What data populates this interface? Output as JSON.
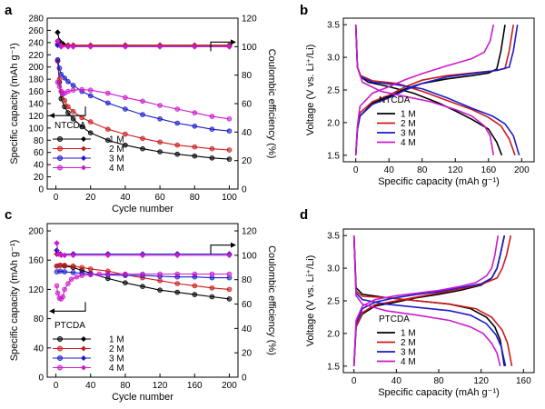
{
  "chart_data": [
    {
      "panel": "a",
      "type": "line",
      "xlabel": "Cycle number",
      "ylabel": "Specific capacity (mAh g⁻¹)",
      "y2label": "Coulombic efficiency (%)",
      "xlim": [
        -5,
        105
      ],
      "ylim": [
        0,
        280
      ],
      "y2lim": [
        0,
        120
      ],
      "xticks": [
        0,
        20,
        40,
        60,
        80,
        100
      ],
      "yticks": [
        0,
        20,
        40,
        60,
        80,
        100,
        120,
        140,
        160,
        180,
        200,
        220,
        240,
        260,
        280
      ],
      "y2ticks": [
        0,
        20,
        40,
        60,
        80,
        100,
        120
      ],
      "material": "NTCDA",
      "legend_position": "bottom-left",
      "series": [
        {
          "name": "1 M",
          "color": "#000000",
          "marker": "circle",
          "x": [
            1,
            2,
            3,
            5,
            7,
            10,
            15,
            20,
            30,
            40,
            50,
            60,
            70,
            80,
            90,
            100
          ],
          "capacity": [
            210,
            175,
            148,
            135,
            125,
            115,
            102,
            92,
            80,
            72,
            66,
            61,
            57,
            54,
            51,
            49
          ],
          "ce_x": [
            1,
            2,
            4,
            7,
            10,
            20,
            40,
            60,
            80,
            100
          ],
          "ce": [
            110,
            104,
            102,
            101,
            101,
            101,
            101,
            101,
            101,
            101
          ]
        },
        {
          "name": "2 M",
          "color": "#cc1a1a",
          "marker": "circle",
          "x": [
            1,
            2,
            3,
            5,
            7,
            10,
            15,
            20,
            30,
            40,
            50,
            60,
            70,
            80,
            90,
            100
          ],
          "capacity": [
            210,
            180,
            160,
            145,
            135,
            127,
            117,
            110,
            98,
            90,
            83,
            77,
            72,
            69,
            66,
            64
          ],
          "ce_x": [
            1,
            3,
            7,
            10,
            20,
            40,
            60,
            80,
            100
          ],
          "ce": [
            102,
            101,
            101,
            101,
            101,
            101,
            101,
            101,
            101
          ]
        },
        {
          "name": "3 M",
          "color": "#1a1acc",
          "marker": "circle",
          "x": [
            1,
            2,
            3,
            5,
            7,
            10,
            15,
            20,
            30,
            40,
            50,
            60,
            70,
            80,
            90,
            100
          ],
          "capacity": [
            212,
            198,
            188,
            182,
            176,
            170,
            160,
            153,
            141,
            131,
            122,
            115,
            108,
            103,
            98,
            95
          ],
          "ce_x": [
            1,
            3,
            7,
            10,
            20,
            40,
            60,
            80,
            100
          ],
          "ce": [
            101,
            100,
            100,
            100,
            100,
            100,
            100,
            100,
            100
          ]
        },
        {
          "name": "4 M",
          "color": "#cc1acc",
          "marker": "circle",
          "x": [
            1,
            2,
            3,
            4,
            5,
            7,
            10,
            15,
            20,
            30,
            40,
            50,
            60,
            70,
            80,
            90,
            100
          ],
          "capacity": [
            175,
            168,
            160,
            156,
            157,
            160,
            162,
            163,
            162,
            157,
            150,
            144,
            137,
            131,
            125,
            119,
            115
          ],
          "ce_x": [
            1,
            3,
            7,
            10,
            20,
            40,
            60,
            80,
            100
          ],
          "ce": [
            104,
            100,
            100,
            100,
            100,
            100,
            100,
            100,
            100
          ]
        }
      ],
      "annotations": [
        "arrow-left-capacity",
        "arrow-right-efficiency"
      ]
    },
    {
      "panel": "b",
      "type": "line",
      "xlabel": "Specific capacity (mAh g⁻¹)",
      "ylabel": "Voltage (V vs. Li⁺/Li)",
      "xlim": [
        -15,
        215
      ],
      "ylim": [
        1.4,
        3.6
      ],
      "xticks": [
        0,
        40,
        80,
        120,
        160,
        200
      ],
      "yticks": [
        1.5,
        2.0,
        2.5,
        3.0,
        3.5
      ],
      "material": "NTCDA",
      "legend_position": "bottom-left",
      "series": [
        {
          "name": "1 M",
          "color": "#000000",
          "discharge_x": [
            0,
            2,
            6,
            15,
            40,
            70,
            100,
            120,
            140,
            160,
            170,
            176
          ],
          "discharge_y": [
            3.5,
            2.85,
            2.7,
            2.62,
            2.55,
            2.45,
            2.3,
            2.18,
            2.05,
            1.9,
            1.7,
            1.5
          ],
          "charge_x": [
            0,
            2,
            5,
            20,
            40,
            60,
            80,
            110,
            140,
            160,
            170,
            175,
            180
          ],
          "charge_y": [
            1.5,
            1.9,
            2.1,
            2.3,
            2.4,
            2.52,
            2.6,
            2.67,
            2.72,
            2.76,
            2.82,
            3.1,
            3.5
          ]
        },
        {
          "name": "2 M",
          "color": "#cc1a1a",
          "discharge_x": [
            0,
            2,
            6,
            20,
            50,
            80,
            110,
            140,
            160,
            175,
            185,
            192
          ],
          "discharge_y": [
            3.5,
            2.85,
            2.72,
            2.64,
            2.6,
            2.48,
            2.34,
            2.2,
            2.08,
            1.95,
            1.75,
            1.5
          ],
          "charge_x": [
            0,
            2,
            5,
            20,
            40,
            60,
            80,
            110,
            140,
            170,
            180,
            185,
            190
          ],
          "charge_y": [
            1.5,
            1.9,
            2.15,
            2.32,
            2.42,
            2.55,
            2.65,
            2.72,
            2.76,
            2.8,
            2.83,
            3.1,
            3.5
          ]
        },
        {
          "name": "3 M",
          "color": "#1a1acc",
          "discharge_x": [
            0,
            2,
            6,
            20,
            50,
            80,
            110,
            140,
            165,
            180,
            190,
            197
          ],
          "discharge_y": [
            3.5,
            2.85,
            2.7,
            2.62,
            2.58,
            2.52,
            2.38,
            2.22,
            2.1,
            1.98,
            1.8,
            1.5
          ],
          "charge_x": [
            0,
            2,
            5,
            20,
            40,
            60,
            80,
            110,
            140,
            170,
            185,
            190,
            195
          ],
          "charge_y": [
            1.5,
            1.9,
            2.1,
            2.28,
            2.38,
            2.5,
            2.6,
            2.7,
            2.75,
            2.8,
            2.85,
            3.1,
            3.5
          ]
        },
        {
          "name": "4 M",
          "color": "#cc1acc",
          "discharge_x": [
            0,
            2,
            8,
            30,
            60,
            90,
            120,
            140,
            155,
            162,
            166
          ],
          "discharge_y": [
            3.5,
            2.85,
            2.62,
            2.48,
            2.4,
            2.32,
            2.2,
            2.1,
            1.95,
            1.8,
            1.5
          ],
          "charge_x": [
            0,
            2,
            5,
            20,
            40,
            60,
            80,
            110,
            140,
            155,
            162,
            166
          ],
          "charge_y": [
            1.5,
            1.95,
            2.25,
            2.45,
            2.55,
            2.66,
            2.75,
            2.87,
            2.98,
            3.08,
            3.25,
            3.5
          ]
        }
      ]
    },
    {
      "panel": "c",
      "type": "line",
      "xlabel": "Cycle number",
      "ylabel": "Specific capacity (mAh g⁻¹)",
      "y2label": "Coulombic efficiency (%)",
      "xlim": [
        -10,
        210
      ],
      "ylim": [
        0,
        210
      ],
      "y2lim": [
        0,
        126
      ],
      "xticks": [
        0,
        40,
        80,
        120,
        160,
        200
      ],
      "yticks": [
        0,
        40,
        80,
        120,
        160,
        200
      ],
      "y2ticks": [
        0,
        20,
        40,
        60,
        80,
        100,
        120
      ],
      "material": "PTCDA",
      "legend_position": "bottom-left",
      "series": [
        {
          "name": "1 M",
          "color": "#000000",
          "marker": "circle",
          "x": [
            1,
            5,
            10,
            20,
            30,
            40,
            60,
            80,
            100,
            120,
            140,
            160,
            180,
            200
          ],
          "capacity": [
            152,
            153,
            152,
            150,
            146,
            142,
            135,
            129,
            124,
            119,
            116,
            113,
            110,
            107
          ],
          "ce_x": [
            1,
            5,
            20,
            60,
            100,
            140,
            200
          ],
          "ce": [
            101,
            101,
            101,
            101,
            101,
            101,
            101
          ]
        },
        {
          "name": "2 M",
          "color": "#cc1a1a",
          "marker": "circle",
          "x": [
            1,
            5,
            10,
            20,
            30,
            40,
            60,
            80,
            100,
            120,
            140,
            160,
            180,
            200
          ],
          "capacity": [
            152,
            153,
            153,
            152,
            150,
            148,
            145,
            140,
            136,
            132,
            128,
            125,
            122,
            120
          ],
          "ce_x": [
            1,
            5,
            20,
            60,
            100,
            140,
            200
          ],
          "ce": [
            101,
            101,
            101,
            101,
            101,
            101,
            101
          ]
        },
        {
          "name": "3 M",
          "color": "#1a1acc",
          "marker": "circle",
          "x": [
            1,
            5,
            10,
            20,
            30,
            40,
            60,
            80,
            100,
            120,
            140,
            160,
            180,
            200
          ],
          "capacity": [
            144,
            145,
            144,
            143,
            142,
            141,
            140,
            139,
            139,
            138,
            137,
            137,
            136,
            136
          ],
          "ce_x": [
            1,
            5,
            20,
            60,
            100,
            140,
            200
          ],
          "ce": [
            104,
            101,
            101,
            101,
            101,
            101,
            101
          ]
        },
        {
          "name": "4 M",
          "color": "#cc1acc",
          "marker": "circle",
          "x": [
            1,
            2,
            4,
            6,
            8,
            10,
            14,
            18,
            24,
            30,
            40,
            50,
            60,
            80,
            100,
            120,
            140,
            160,
            180,
            200
          ],
          "capacity": [
            125,
            115,
            108,
            107,
            110,
            120,
            128,
            134,
            137,
            139,
            140,
            141,
            141,
            141,
            141,
            141,
            141,
            141,
            141,
            141
          ],
          "ce_x": [
            1,
            3,
            6,
            10,
            20,
            60,
            100,
            140,
            200
          ],
          "ce": [
            110,
            101,
            100,
            100,
            100,
            100,
            100,
            100,
            100
          ]
        }
      ],
      "annotations": [
        "arrow-left-capacity",
        "arrow-right-efficiency"
      ]
    },
    {
      "panel": "d",
      "type": "line",
      "xlabel": "Specific capacity (mAh g⁻¹)",
      "ylabel": "Voltage (V vs. Li⁺/Li)",
      "xlim": [
        -10,
        170
      ],
      "ylim": [
        1.4,
        3.6
      ],
      "xticks": [
        0,
        40,
        80,
        120,
        160
      ],
      "yticks": [
        1.5,
        2.0,
        2.5,
        3.0,
        3.5
      ],
      "material": "PTCDA",
      "legend_position": "bottom-left",
      "series": [
        {
          "name": "1 M",
          "color": "#000000",
          "discharge_x": [
            0,
            2,
            8,
            30,
            60,
            90,
            110,
            125,
            133,
            138,
            142
          ],
          "discharge_y": [
            3.5,
            2.7,
            2.6,
            2.55,
            2.5,
            2.45,
            2.38,
            2.25,
            2.1,
            1.9,
            1.5
          ],
          "charge_x": [
            0,
            2,
            8,
            20,
            40,
            60,
            80,
            100,
            120,
            130,
            135,
            138,
            142
          ],
          "charge_y": [
            1.5,
            2.1,
            2.3,
            2.42,
            2.48,
            2.55,
            2.6,
            2.66,
            2.74,
            2.85,
            3.0,
            3.2,
            3.5
          ]
        },
        {
          "name": "2 M",
          "color": "#cc1a1a",
          "discharge_x": [
            0,
            2,
            8,
            30,
            60,
            90,
            115,
            130,
            140,
            145,
            149
          ],
          "discharge_y": [
            3.5,
            2.65,
            2.57,
            2.55,
            2.5,
            2.45,
            2.38,
            2.25,
            2.05,
            1.85,
            1.5
          ],
          "charge_x": [
            0,
            2,
            8,
            20,
            40,
            60,
            80,
            100,
            120,
            135,
            140,
            144,
            148
          ],
          "charge_y": [
            1.5,
            2.1,
            2.32,
            2.44,
            2.5,
            2.56,
            2.62,
            2.68,
            2.75,
            2.85,
            3.0,
            3.2,
            3.5
          ]
        },
        {
          "name": "3 M",
          "color": "#1a1acc",
          "discharge_x": [
            0,
            2,
            8,
            30,
            60,
            90,
            110,
            125,
            134,
            139,
            143
          ],
          "discharge_y": [
            3.5,
            2.62,
            2.52,
            2.45,
            2.4,
            2.35,
            2.28,
            2.15,
            1.98,
            1.8,
            1.5
          ],
          "charge_x": [
            0,
            2,
            8,
            20,
            40,
            60,
            80,
            100,
            120,
            130,
            135,
            138,
            142
          ],
          "charge_y": [
            1.5,
            2.15,
            2.38,
            2.48,
            2.55,
            2.6,
            2.64,
            2.7,
            2.76,
            2.85,
            3.0,
            3.2,
            3.5
          ]
        },
        {
          "name": "4 M",
          "color": "#cc1acc",
          "discharge_x": [
            0,
            2,
            8,
            30,
            60,
            90,
            110,
            122,
            130,
            135,
            138
          ],
          "discharge_y": [
            3.5,
            2.58,
            2.45,
            2.35,
            2.28,
            2.2,
            2.1,
            2.0,
            1.85,
            1.7,
            1.5
          ],
          "charge_x": [
            0,
            2,
            8,
            20,
            40,
            60,
            80,
            100,
            115,
            125,
            130,
            133,
            136
          ],
          "charge_y": [
            1.5,
            2.2,
            2.42,
            2.52,
            2.58,
            2.62,
            2.66,
            2.72,
            2.78,
            2.88,
            3.0,
            3.2,
            3.5
          ]
        }
      ]
    }
  ]
}
